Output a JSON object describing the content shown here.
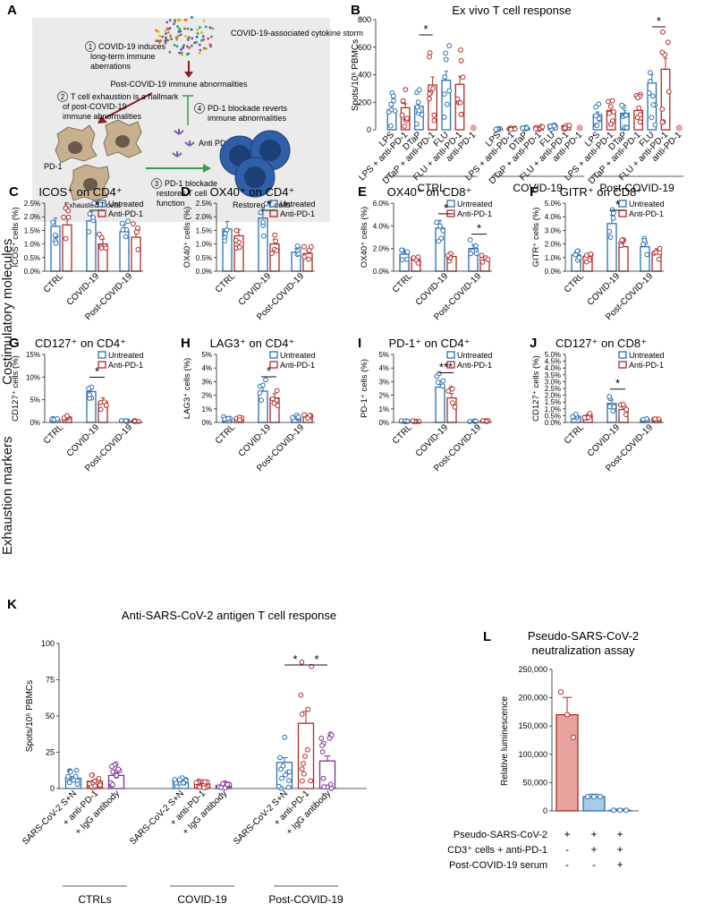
{
  "colors": {
    "blue": "#2a6fb0",
    "red": "#b02a26",
    "purple": "#7b2d8e",
    "lightblue": "#a9cbe8",
    "lightred": "#e8a39f",
    "lightpurple": "#d3b5de",
    "schematic_bg": "#ebebeb"
  },
  "row_labels": {
    "costim": "Costimulatory molecules",
    "exhaustion": "Exhaustion markers"
  },
  "legend": {
    "untreated": "Untreated",
    "anti_pd1": "Anti-PD-1"
  },
  "schematic": {
    "letter": "A",
    "storm": "COVID-19-associated cytokine storm",
    "step1_num": "1",
    "step1": [
      "COVID-19 induces",
      "long-term immune",
      "aberrations"
    ],
    "post": "Post-COVID-19 immune abnormalities",
    "step2_num": "2",
    "step2": [
      "T cell exhaustion is a hallmark",
      "of post-COVID-19",
      "immune abnormalities"
    ],
    "step4_num": "4",
    "step4": [
      "PD-1 blockade reverts",
      "immune abnormalities"
    ],
    "anti_pd1": "Anti PD-1",
    "pd1": "PD-1",
    "step3_num": "3",
    "step3": [
      "PD-1 blockade",
      "restores T cell",
      "function"
    ],
    "exhausted": "Exhausted T cells",
    "restored": "Restored T cells"
  },
  "chart_data": [
    {
      "id": "B",
      "type": "bar",
      "title": "Ex vivo T cell response",
      "ylabel": "Spots/10⁶ PBMCs",
      "ylim": [
        0,
        800
      ],
      "yticks": [
        0,
        200,
        400,
        600,
        800
      ],
      "categories": [
        "LPS",
        "LPS + anti-PD-1",
        "DTaP",
        "DTaP + anti-PD-1",
        "FLU",
        "FLU + anti-PD-1",
        "anti-PD-1"
      ],
      "groups": [
        "CTRL",
        "COVID-19",
        "Post-COVID-19"
      ],
      "values": [
        [
          145,
          160,
          170,
          325,
          360,
          330,
          0
        ],
        [
          5,
          8,
          12,
          14,
          22,
          30,
          0
        ],
        [
          110,
          140,
          120,
          140,
          340,
          440,
          0
        ]
      ],
      "sig": [
        {
          "group": 0,
          "from": 2,
          "to": 3,
          "label": "*"
        },
        {
          "group": 2,
          "from": 4,
          "to": 5,
          "label": "*"
        }
      ]
    },
    {
      "id": "C",
      "type": "bar",
      "title": "ICOS⁺ on CD4⁺",
      "ylabel": "ICOS⁺ cells (%)",
      "ylim": [
        0,
        2.5
      ],
      "yticks": [
        "0.0%",
        "0.5%",
        "1.0%",
        "1.5%",
        "2.0%",
        "2.5%"
      ],
      "groups": [
        "CTRL",
        "COVID-19",
        "Post-COVID-19"
      ],
      "series": [
        {
          "name": "Untreated",
          "values": [
            1.65,
            1.85,
            1.45
          ]
        },
        {
          "name": "Anti-PD-1",
          "values": [
            1.7,
            1.0,
            1.25
          ]
        }
      ],
      "sig": [
        {
          "group": 1,
          "label": "*"
        }
      ]
    },
    {
      "id": "D",
      "type": "bar",
      "title": "OX40⁺ on CD4⁺",
      "ylabel": "OX40⁺ cells (%)",
      "ylim": [
        0,
        2.5
      ],
      "yticks": [
        "0.0%",
        "0.5%",
        "1.0%",
        "1.5%",
        "2.0%",
        "2.5%"
      ],
      "groups": [
        "CTRL",
        "COVID-19",
        "Post-COVID-19"
      ],
      "series": [
        {
          "name": "Untreated",
          "values": [
            1.55,
            1.95,
            0.7
          ]
        },
        {
          "name": "Anti-PD-1",
          "values": [
            1.3,
            1.0,
            0.65
          ]
        }
      ],
      "sig": [
        {
          "group": 1,
          "label": "*"
        }
      ]
    },
    {
      "id": "E",
      "type": "bar",
      "title": "OX40⁺ on CD8⁺",
      "ylabel": "OX40⁺ cells (%)",
      "ylim": [
        0,
        6
      ],
      "yticks": [
        "0.0%",
        "2.0%",
        "4.0%",
        "6.0%"
      ],
      "groups": [
        "CTRL",
        "COVID-19",
        "Post-COVID-19"
      ],
      "series": [
        {
          "name": "Untreated",
          "values": [
            1.5,
            3.8,
            2.0
          ]
        },
        {
          "name": "Anti-PD-1",
          "values": [
            1.0,
            1.3,
            1.1
          ]
        }
      ],
      "sig": [
        {
          "group": 1,
          "label": "*"
        },
        {
          "group": 2,
          "label": "*"
        }
      ]
    },
    {
      "id": "F",
      "type": "bar",
      "title": "GITR⁺ on CD8⁺",
      "ylabel": "GITR⁺ cells (%)",
      "ylim": [
        0,
        5
      ],
      "yticks": [
        "0.0%",
        "1.0%",
        "2.0%",
        "3.0%",
        "4.0%",
        "5.0%"
      ],
      "groups": [
        "CTRL",
        "COVID-19",
        "Post-COVID-19"
      ],
      "series": [
        {
          "name": "Untreated",
          "values": [
            1.2,
            3.5,
            1.8
          ]
        },
        {
          "name": "Anti-PD-1",
          "values": [
            1.1,
            1.8,
            1.4
          ]
        }
      ],
      "sig": [
        {
          "group": 1,
          "label": "*"
        }
      ]
    },
    {
      "id": "G",
      "type": "bar",
      "title": "CD127⁺ on CD4⁺",
      "ylabel": "CD127⁺ cells (%)",
      "ylim": [
        0,
        15
      ],
      "yticks": [
        "0%",
        "5%",
        "10%",
        "15%"
      ],
      "groups": [
        "CTRL",
        "COVID-19",
        "Post-COVID-19"
      ],
      "series": [
        {
          "name": "Untreated",
          "values": [
            0.6,
            6.8,
            0.3
          ]
        },
        {
          "name": "Anti-PD-1",
          "values": [
            1.2,
            4.6,
            0.3
          ]
        }
      ],
      "sig": [
        {
          "group": 1,
          "label": "*"
        }
      ]
    },
    {
      "id": "H",
      "type": "bar",
      "title": "LAG3⁺ on CD4⁺",
      "ylabel": "LAG3⁺ cells (%)",
      "ylim": [
        0,
        5
      ],
      "yticks": [
        "0%",
        "1%",
        "2%",
        "3%",
        "4%",
        "5%"
      ],
      "groups": [
        "CTRL",
        "COVID-19",
        "Post-COVID-19"
      ],
      "series": [
        {
          "name": "Untreated",
          "values": [
            0.3,
            2.3,
            0.4
          ]
        },
        {
          "name": "Anti-PD-1",
          "values": [
            0.3,
            1.8,
            0.4
          ]
        }
      ],
      "sig": [
        {
          "group": 1,
          "label": "*"
        }
      ]
    },
    {
      "id": "I",
      "type": "bar",
      "title": "PD-1⁺ on CD4⁺",
      "ylabel": "PD-1⁺ cells (%)",
      "ylim": [
        0,
        5
      ],
      "yticks": [
        "0%",
        "1%",
        "2%",
        "3%",
        "4%",
        "5%"
      ],
      "groups": [
        "CTRL",
        "COVID-19",
        "Post-COVID-19"
      ],
      "series": [
        {
          "name": "Untreated",
          "values": [
            0.1,
            2.6,
            0.1
          ]
        },
        {
          "name": "Anti-PD-1",
          "values": [
            0.1,
            1.8,
            0.1
          ]
        }
      ],
      "sig": [
        {
          "group": 1,
          "label": "***"
        }
      ]
    },
    {
      "id": "J",
      "type": "bar",
      "title": "CD127⁺ on CD8⁺",
      "ylabel": "CD127⁺ cells (%)",
      "ylim": [
        0,
        5
      ],
      "yticks": [
        "0.0%",
        "0.5%",
        "1.0%",
        "1.5%",
        "2.0%",
        "2.5%",
        "3.0%",
        "3.5%",
        "4.0%",
        "4.5%",
        "5.0%"
      ],
      "groups": [
        "CTRL",
        "COVID-19",
        "Post-COVID-19"
      ],
      "series": [
        {
          "name": "Untreated",
          "values": [
            0.45,
            1.4,
            0.2
          ]
        },
        {
          "name": "Anti-PD-1",
          "values": [
            0.5,
            0.95,
            0.2
          ]
        }
      ],
      "sig": [
        {
          "group": 1,
          "label": "*"
        }
      ]
    },
    {
      "id": "K",
      "type": "bar",
      "title": "Anti-SARS-CoV-2 antigen T cell response",
      "ylabel": "Spots/10⁶ PBMCs",
      "ylim": [
        0,
        100
      ],
      "yticks": [
        0,
        25,
        50,
        75,
        100
      ],
      "categories": [
        "SARS-CoV-2 S+N",
        "+ anti-PD-1",
        "+ IgG antibody"
      ],
      "groups": [
        "CTRLs",
        "COVID-19",
        "Post-COVID-19"
      ],
      "values": [
        [
          7,
          5,
          9
        ],
        [
          4,
          3,
          2
        ],
        [
          18,
          45,
          19
        ]
      ],
      "sig": [
        {
          "group": 2,
          "from": 0,
          "to": 1,
          "label": "*"
        },
        {
          "group": 2,
          "from": 1,
          "to": 2,
          "label": "*"
        }
      ]
    },
    {
      "id": "L",
      "type": "bar",
      "title": "Pseudo-SARS-CoV-2 neutralization assay",
      "ylabel": "Relative luminescence",
      "ylim": [
        0,
        250000
      ],
      "yticks": [
        "0",
        "50,000",
        "100,000",
        "150,000",
        "200,000",
        "250,000"
      ],
      "values": [
        170000,
        25000,
        1000
      ],
      "points": [
        [
          210000,
          170000,
          130000
        ],
        [
          25000,
          25000,
          25000
        ],
        [
          1000,
          1000,
          1000
        ]
      ],
      "row_labels": [
        "Pseudo-SARS-CoV-2",
        "CD3⁺ cells + anti-PD-1",
        "Post-COVID-19 serum"
      ],
      "row_signs": [
        [
          "+",
          "+",
          "+"
        ],
        [
          "-",
          "+",
          "+"
        ],
        [
          "-",
          "-",
          "+"
        ]
      ]
    }
  ]
}
